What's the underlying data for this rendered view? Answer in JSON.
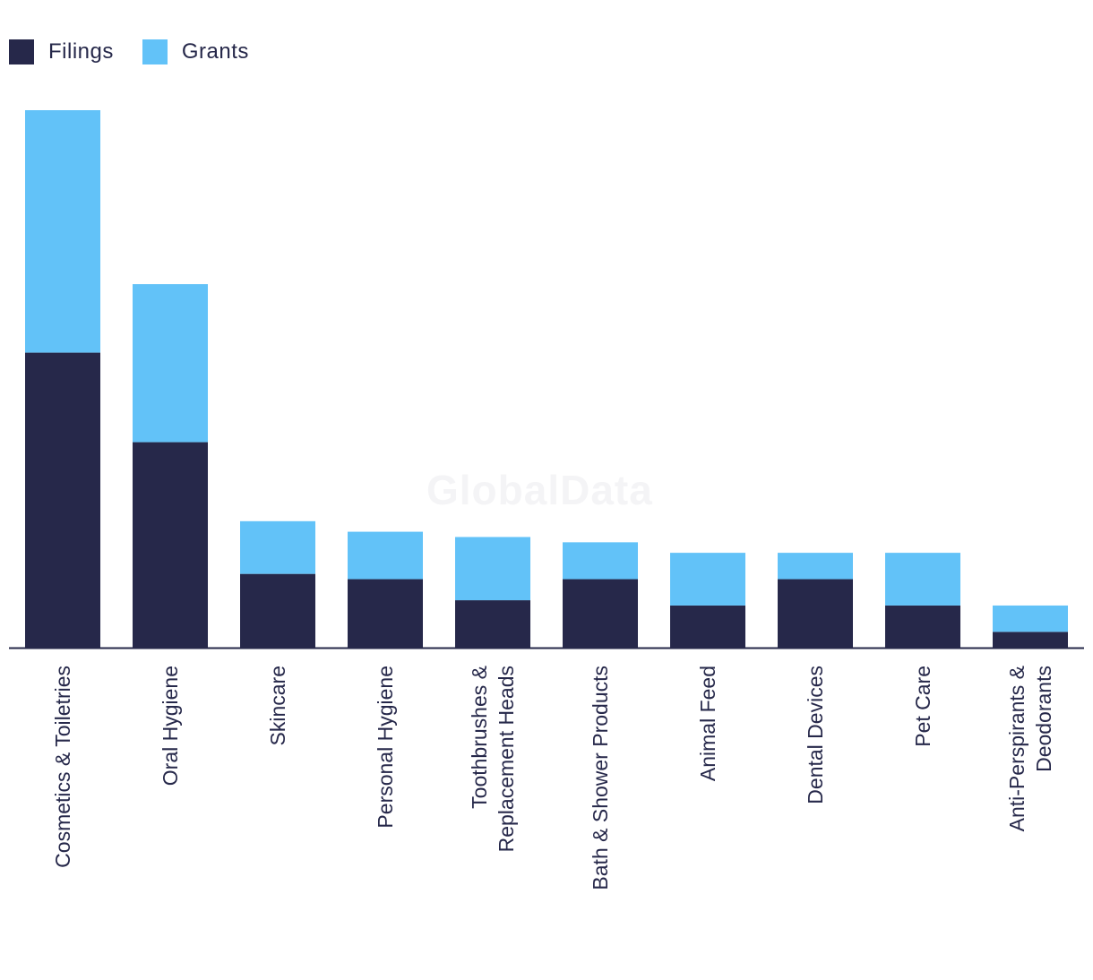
{
  "colors": {
    "filings": "#26284a",
    "grants": "#62c2f8",
    "axis": "#26284a",
    "text": "#26284a"
  },
  "watermark": "GlobalData",
  "legend": {
    "filings_label": "Filings",
    "grants_label": "Grants"
  },
  "chart_data": {
    "type": "bar",
    "stacked": true,
    "title": "",
    "xlabel": "",
    "ylabel": "",
    "ylim": [
      0,
      102
    ],
    "grid": false,
    "legend_position": "top-left",
    "categories": [
      [
        "Cosmetics & Toiletries"
      ],
      [
        "Oral Hygiene"
      ],
      [
        "Skincare"
      ],
      [
        "Personal Hygiene"
      ],
      [
        "Toothbrushes &",
        "Replacement Heads"
      ],
      [
        "Bath & Shower Products"
      ],
      [
        "Animal Feed"
      ],
      [
        "Dental Devices"
      ],
      [
        "Pet Care"
      ],
      [
        "Anti-Perspirants &",
        "Deodorants"
      ]
    ],
    "series": [
      {
        "name": "Filings",
        "values": [
          56,
          39,
          14,
          13,
          9,
          13,
          8,
          13,
          8,
          3
        ]
      },
      {
        "name": "Grants",
        "values": [
          46,
          30,
          10,
          9,
          12,
          7,
          10,
          5,
          10,
          5
        ]
      }
    ]
  }
}
